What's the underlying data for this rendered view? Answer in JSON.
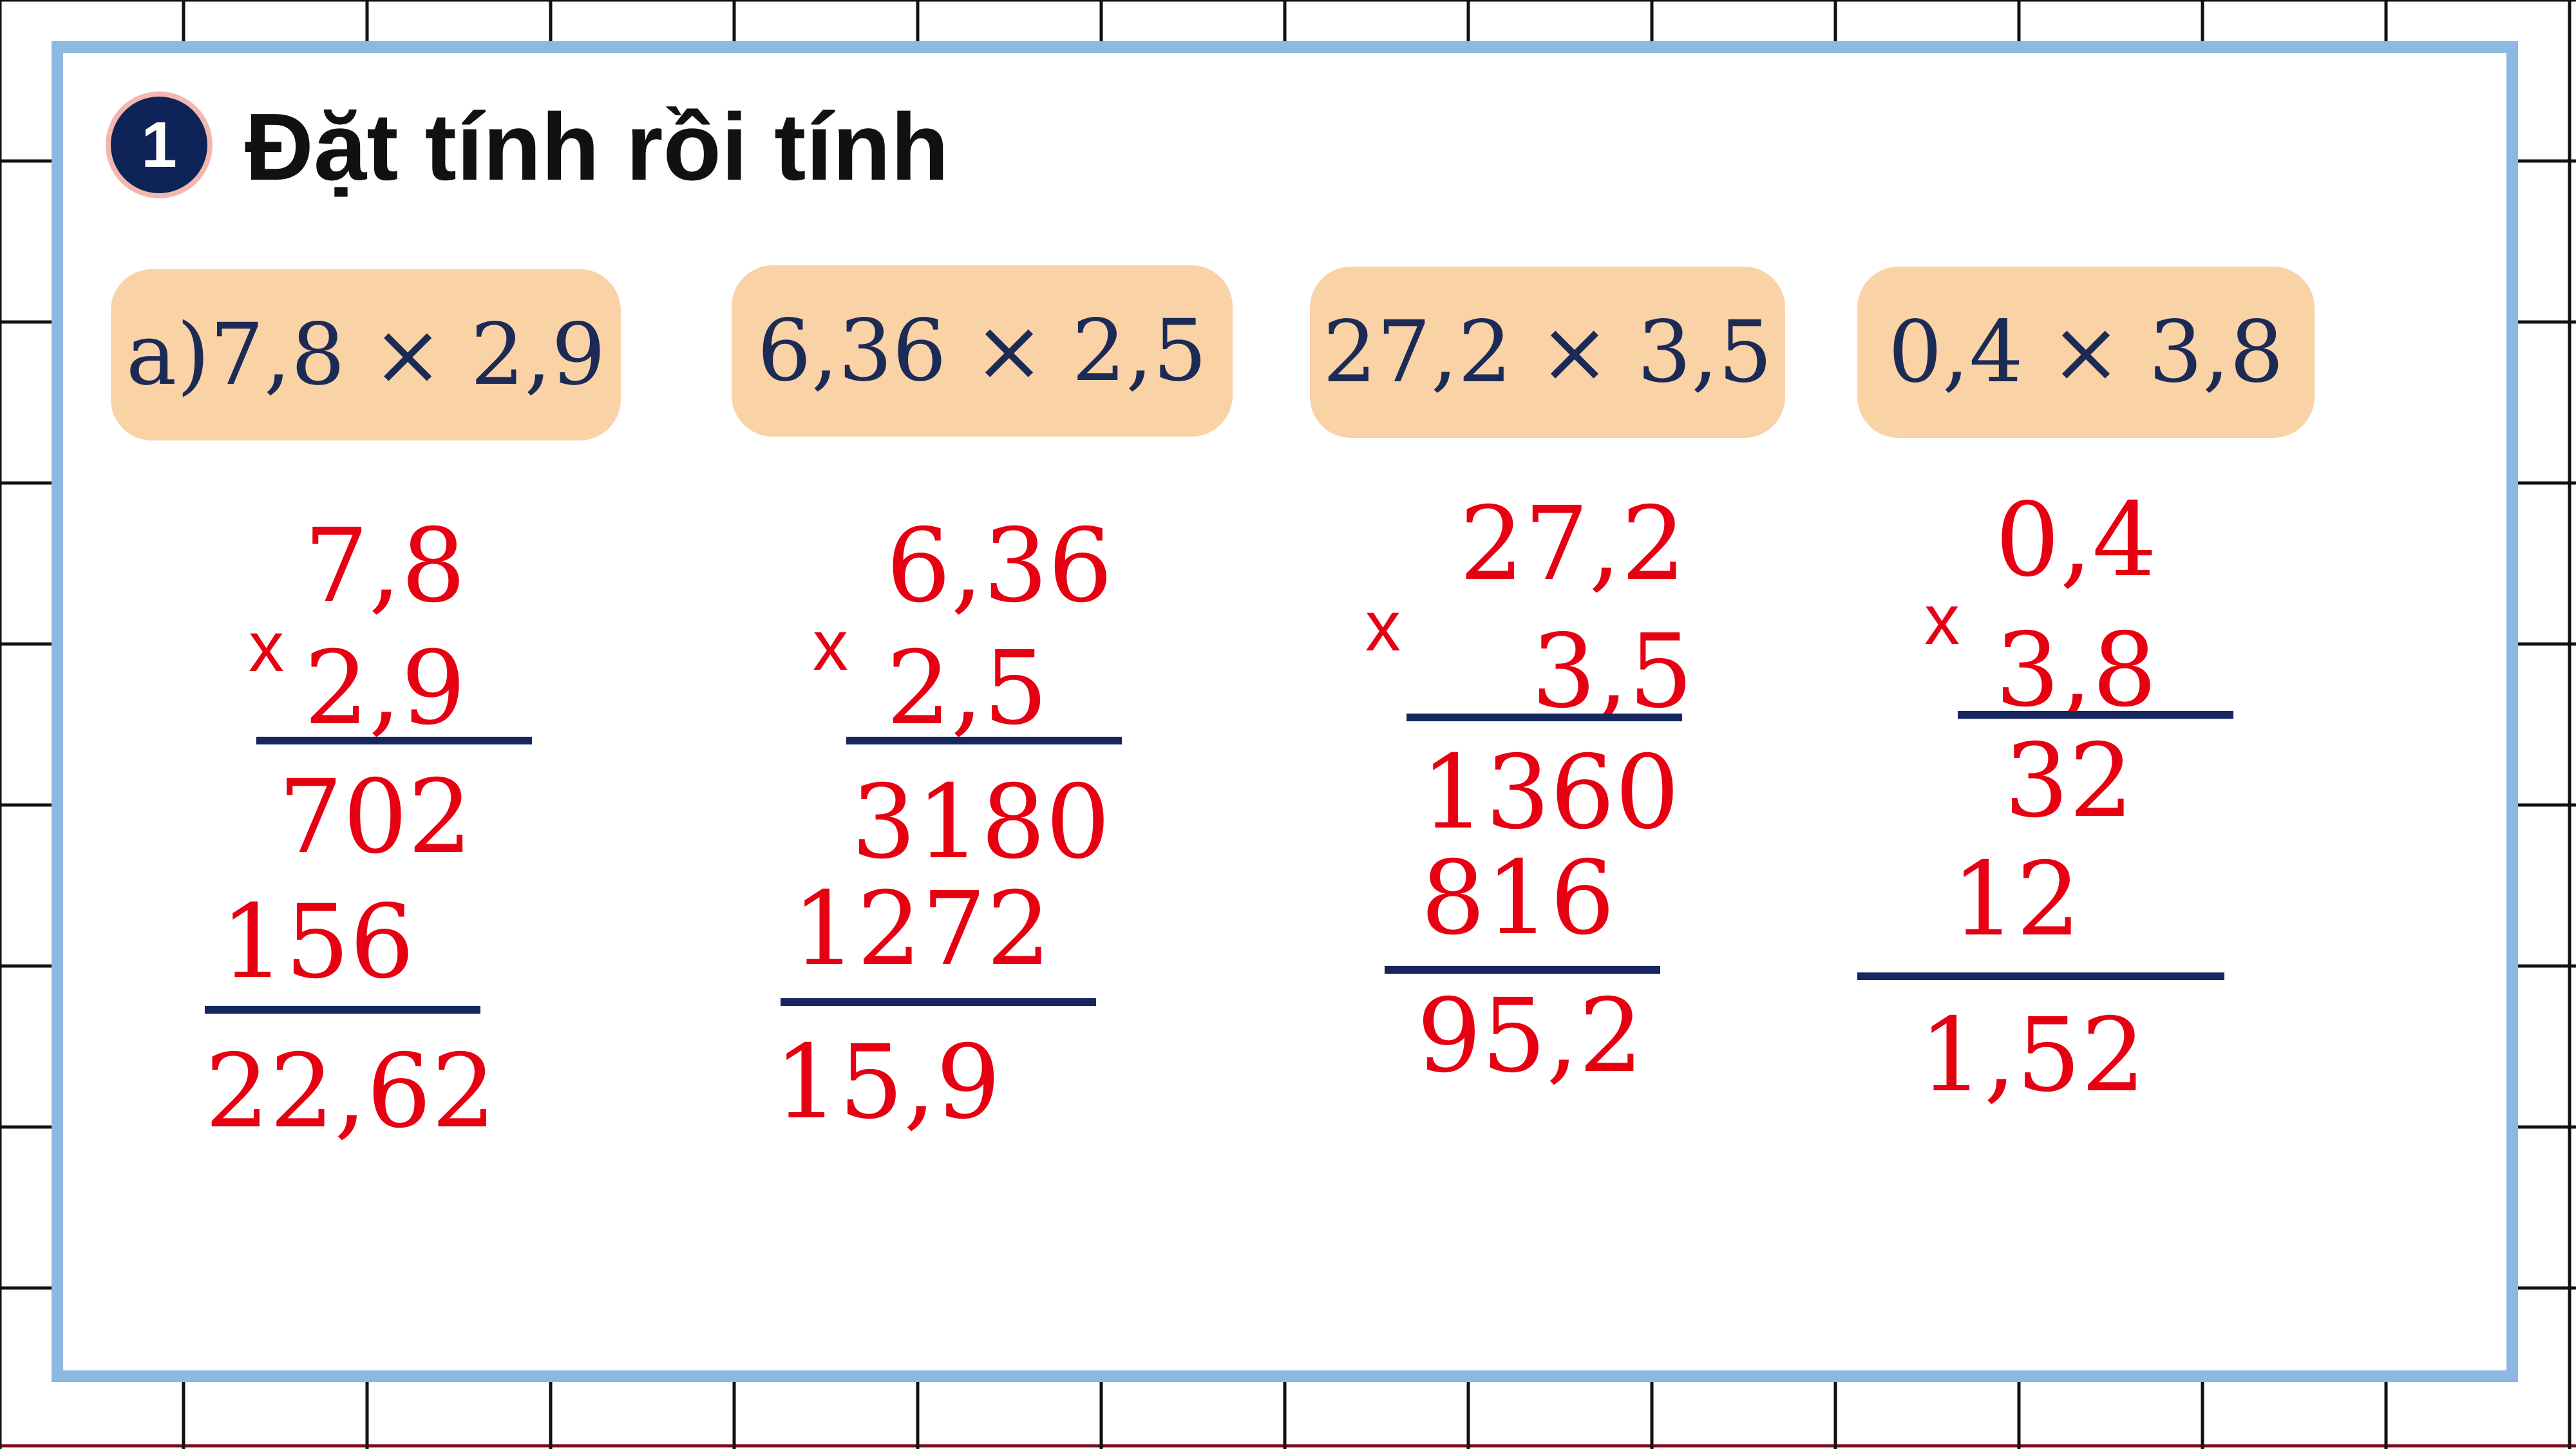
{
  "exercise": {
    "number": "1",
    "title": "Đặt tính rồi tính"
  },
  "problems": [
    {
      "expression": "a)7,8 × 2,9",
      "sign": "x",
      "multiplicand": "7,8",
      "multiplier": "2,9",
      "partial_1": "702",
      "partial_2": "156",
      "result": "22,62"
    },
    {
      "expression": "6,36 × 2,5",
      "sign": "x",
      "multiplicand": "6,36",
      "multiplier": "2,5",
      "partial_1": "3180",
      "partial_2": "1272",
      "result": "15,9"
    },
    {
      "expression": "27,2 × 3,5",
      "sign": "x",
      "multiplicand": "27,2",
      "multiplier": "3,5",
      "partial_1": "1360",
      "partial_2": "816",
      "result": "95,2"
    },
    {
      "expression": "0,4 × 3,8",
      "sign": "x",
      "multiplicand": "0,4",
      "multiplier": "3,8",
      "partial_1": "32",
      "partial_2": "12",
      "result": "1,52"
    }
  ],
  "colors": {
    "frame": "#8cb8e4",
    "pill": "#f9d2a6",
    "work": "#e60012",
    "line": "#16265e",
    "badge": "#0e2358"
  }
}
